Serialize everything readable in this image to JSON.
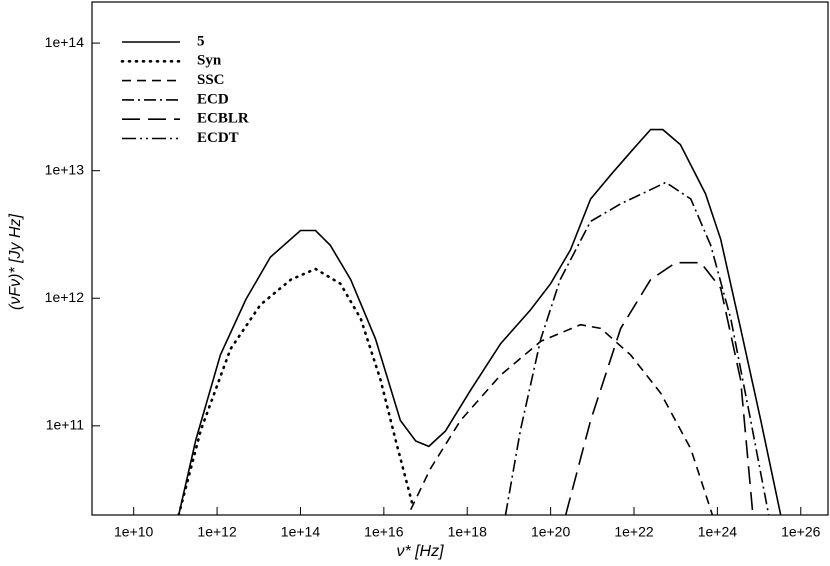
{
  "chart_data": {
    "type": "line",
    "xlabel": "ν* [Hz]",
    "ylabel": "(νFν)* [Jy Hz]",
    "xscale": "log",
    "yscale": "log",
    "xlim": [
      1000000000.0,
      4.5e+26
    ],
    "ylim": [
      20000000000.0,
      210000000000000.0
    ],
    "xticks": [
      {
        "value": 10000000000.0,
        "label": "1e+10"
      },
      {
        "value": 1000000000000.0,
        "label": "1e+12"
      },
      {
        "value": 100000000000000.0,
        "label": "1e+14"
      },
      {
        "value": 1e+16,
        "label": "1e+16"
      },
      {
        "value": 1e+18,
        "label": "1e+18"
      },
      {
        "value": 1e+20,
        "label": "1e+20"
      },
      {
        "value": 1e+22,
        "label": "1e+22"
      },
      {
        "value": 1e+24,
        "label": "1e+24"
      },
      {
        "value": 1e+26,
        "label": "1e+26"
      }
    ],
    "yticks": [
      {
        "value": 100000000000.0,
        "label": "1e+11"
      },
      {
        "value": 1000000000000.0,
        "label": "1e+12"
      },
      {
        "value": 10000000000000.0,
        "label": "1e+13"
      },
      {
        "value": 100000000000000.0,
        "label": "1e+14"
      }
    ],
    "legend": "upper left",
    "series": [
      {
        "name": "5",
        "color": "#000000",
        "dash": "none",
        "x": [
          120000000000.0,
          310000000000.0,
          1200000000000.0,
          4900000000000.0,
          19000000000000.0,
          100000000000000.0,
          230000000000000.0,
          520000000000000.0,
          1600000000000000.0,
          6300000000000000.0,
          2.5e+16,
          5.8e+16,
          1.2e+17,
          3e+17,
          1.2e+18,
          6.3e+18,
          3.3e+19,
          1e+20,
          3e+20,
          9.1e+20,
          2.8e+21,
          1e+22,
          2.5e+22,
          4.9e+22,
          1.3e+23,
          5.2e+23,
          1.2e+24,
          3.6e+24,
          1.1e+25,
          3.3e+25
        ],
        "values": [
          20000000000.0,
          78000000000.0,
          360000000000.0,
          980000000000.0,
          2100000000000.0,
          3400000000000.0,
          3400000000000.0,
          2600000000000.0,
          1400000000000.0,
          480000000000.0,
          110000000000.0,
          76000000000.0,
          69000000000.0,
          91000000000.0,
          190000000000.0,
          440000000000.0,
          810000000000.0,
          1300000000000.0,
          2400000000000.0,
          6000000000000.0,
          9300000000000.0,
          15000000000000.0,
          21000000000000.0,
          21000000000000.0,
          16000000000000.0,
          6600000000000.0,
          2900000000000.0,
          580000000000.0,
          110000000000.0,
          20000000000.0
        ]
      },
      {
        "name": "Syn",
        "color": "#000000",
        "dash": "1,6",
        "x": [
          120000000000.0,
          410000000000.0,
          2100000000000.0,
          11000000000000.0,
          59000000000000.0,
          230000000000000.0,
          910000000000000.0,
          2800000000000000.0,
          8300000000000000.0,
          1.9e+16,
          4.9e+16
        ],
        "values": [
          20000000000.0,
          93000000000.0,
          400000000000.0,
          890000000000.0,
          1400000000000.0,
          1700000000000.0,
          1300000000000.0,
          690000000000.0,
          230000000000.0,
          78000000000.0,
          24000000000.0
        ]
      },
      {
        "name": "SSC",
        "color": "#000000",
        "dash": "9,6",
        "x": [
          4.4e+16,
          1.3e+17,
          6.9e+17,
          6.3e+18,
          5.8e+19,
          5.2e+20,
          1.6e+21,
          8.3e+21,
          4.4e+22,
          2.3e+23,
          7.6e+23
        ],
        "values": [
          22000000000.0,
          46000000000.0,
          110000000000.0,
          250000000000.0,
          460000000000.0,
          620000000000.0,
          580000000000.0,
          360000000000.0,
          180000000000.0,
          66000000000.0,
          20000000000.0
        ]
      },
      {
        "name": "ECD",
        "color": "#000000",
        "dash": "12,4,2,4",
        "x": [
          8.3e+18,
          1.9e+19,
          5.8e+19,
          1.7e+20,
          9.1e+20,
          4.8e+21,
          2.5e+22,
          5.8e+22,
          2.3e+23,
          6.9e+23,
          2.1e+24,
          6.3e+24,
          1.7e+25
        ],
        "values": [
          20000000000.0,
          93000000000.0,
          480000000000.0,
          1400000000000.0,
          4000000000000.0,
          5500000000000.0,
          7100000000000.0,
          8100000000000.0,
          6000000000000.0,
          2600000000000.0,
          690000000000.0,
          110000000000.0,
          20000000000.0
        ]
      },
      {
        "name": "ECBLR",
        "color": "#000000",
        "dash": "18,8",
        "x": [
          2.3e+20,
          9.1e+20,
          4.8e+21,
          2.5e+22,
          1e+23,
          4e+23,
          1.2e+24,
          3.6e+24,
          7.1e+24
        ],
        "values": [
          20000000000.0,
          110000000000.0,
          580000000000.0,
          1400000000000.0,
          1900000000000.0,
          1900000000000.0,
          1200000000000.0,
          230000000000.0,
          20000000000.0
        ]
      },
      {
        "name": "ECDT",
        "color": "#000000",
        "dash": "14,4,2,4,2,4",
        "x": [],
        "values": []
      }
    ]
  }
}
